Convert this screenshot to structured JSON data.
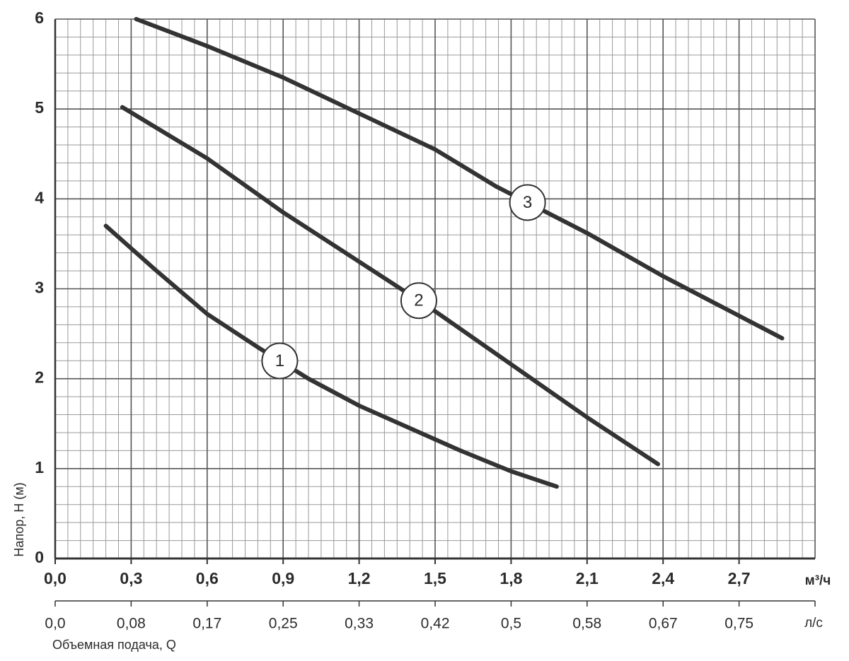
{
  "chart_data": {
    "type": "line",
    "y_label": "Напор, H (м)",
    "x_unit": "м³/ч",
    "x2_unit": "л/с",
    "x2_label": "Объемная подача, Q",
    "xlim": [
      0,
      3.0
    ],
    "xticks": [
      {
        "value": 0,
        "label": "0,0"
      },
      {
        "value": 0.3,
        "label": "0,3"
      },
      {
        "value": 0.6,
        "label": "0,6"
      },
      {
        "value": 0.9,
        "label": "0,9"
      },
      {
        "value": 1.2,
        "label": "1,2"
      },
      {
        "value": 1.5,
        "label": "1,5"
      },
      {
        "value": 1.8,
        "label": "1,8"
      },
      {
        "value": 2.1,
        "label": "2,1"
      },
      {
        "value": 2.4,
        "label": "2,4"
      },
      {
        "value": 2.7,
        "label": "2,7"
      }
    ],
    "ylim": [
      0,
      6
    ],
    "yticks": [
      0,
      1,
      2,
      3,
      4,
      5,
      6
    ],
    "x2lim": [
      0,
      0.8333
    ],
    "x2ticks": [
      {
        "value": 0,
        "label": "0,0"
      },
      {
        "value": 0.0833,
        "label": "0,08"
      },
      {
        "value": 0.1667,
        "label": "0,17"
      },
      {
        "value": 0.25,
        "label": "0,25"
      },
      {
        "value": 0.3333,
        "label": "0,33"
      },
      {
        "value": 0.4167,
        "label": "0,42"
      },
      {
        "value": 0.5,
        "label": "0,5"
      },
      {
        "value": 0.5833,
        "label": "0,58"
      },
      {
        "value": 0.6667,
        "label": "0,67"
      },
      {
        "value": 0.75,
        "label": "0,75"
      }
    ],
    "grid": true,
    "series": [
      {
        "name": "1",
        "color": "#333333",
        "x": [
          0.2,
          0.4,
          0.6,
          0.8,
          1.0,
          1.2,
          1.4,
          1.6,
          1.8,
          1.98
        ],
        "values": [
          3.7,
          3.2,
          2.72,
          2.35,
          2.0,
          1.7,
          1.45,
          1.2,
          0.97,
          0.8
        ]
      },
      {
        "name": "2",
        "color": "#333333",
        "x": [
          0.265,
          0.6,
          0.9,
          1.31,
          1.5,
          1.8,
          2.1,
          2.38
        ],
        "values": [
          5.02,
          4.45,
          3.85,
          3.1,
          2.75,
          2.16,
          1.57,
          1.05
        ]
      },
      {
        "name": "3",
        "color": "#333333",
        "x": [
          0.32,
          0.6,
          0.9,
          1.2,
          1.5,
          1.74,
          2.1,
          2.4,
          2.87
        ],
        "values": [
          6.0,
          5.7,
          5.35,
          4.95,
          4.55,
          4.14,
          3.62,
          3.14,
          2.45
        ]
      }
    ]
  }
}
